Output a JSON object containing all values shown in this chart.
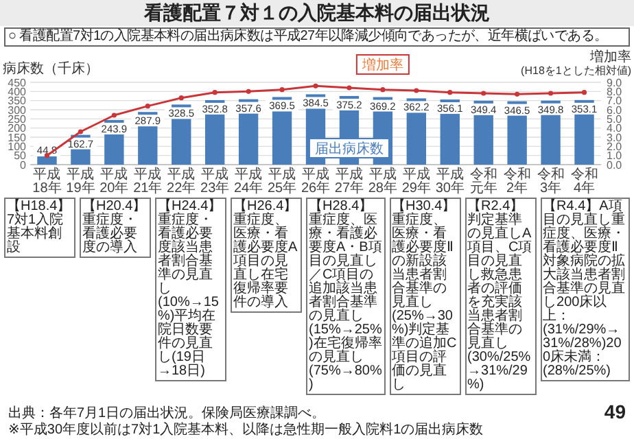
{
  "chart_data": {
    "type": "bar",
    "title": "看護配置７対１の入院基本料の届出状況",
    "subtitle": "○ 看護配置7対1の入院基本料の届出病床数は平成27年以降減少傾向であったが、近年横ばいである。",
    "ylabel": "病床数（千床）",
    "y2label": "増加率\n(H18を1とした相対値)",
    "categories": [
      "平成18年",
      "平成19年",
      "平成20年",
      "平成21年",
      "平成22年",
      "平成23年",
      "平成24年",
      "平成25年",
      "平成26年",
      "平成27年",
      "平成28年",
      "平成29年",
      "平成30年",
      "令和元年",
      "令和2年",
      "令和3年",
      "令和4年"
    ],
    "series": [
      {
        "name": "届出病床数",
        "color": "#4a7ebb",
        "values": [
          44.8,
          162.7,
          243.9,
          287.9,
          328.5,
          352.8,
          357.6,
          369.5,
          384.5,
          375.2,
          369.2,
          362.2,
          356.1,
          349.4,
          346.5,
          349.8,
          353.1
        ],
        "value_labels": [
          "44.8",
          "162.7",
          "243.9",
          "287.9",
          "328.5",
          "352.8",
          "357.6",
          "369.5",
          "384.5",
          "375.2",
          "369.2",
          "362.2",
          "356.1",
          "349.4",
          "346.5",
          "349.8",
          "353.1"
        ]
      },
      {
        "name": "増加率",
        "type": "line",
        "axis": "y2",
        "color": "#c7373a",
        "values": [
          1.0,
          3.6,
          5.4,
          6.4,
          7.3,
          7.9,
          8.0,
          8.2,
          8.6,
          8.4,
          8.2,
          8.1,
          7.9,
          7.8,
          7.7,
          7.8,
          7.9
        ]
      }
    ],
    "ylim": [
      0,
      450
    ],
    "yticks": [
      0,
      50,
      100,
      150,
      200,
      250,
      300,
      350,
      400,
      450
    ],
    "y2lim": [
      0,
      9
    ],
    "y2ticks": [
      {
        "value": 0,
        "label": "0.0"
      },
      {
        "value": 1,
        "label": "1.0"
      },
      {
        "value": 2,
        "label": "2.0"
      },
      {
        "value": 3,
        "label": "3.0"
      },
      {
        "value": 4,
        "label": "4.0"
      },
      {
        "value": 5,
        "label": "5.0"
      },
      {
        "value": 6,
        "label": "6.0"
      },
      {
        "value": 7,
        "label": "7.0"
      },
      {
        "value": 8,
        "label": "8.0"
      },
      {
        "value": 9,
        "label": "9.0"
      }
    ],
    "grid": "y",
    "marker": "circle",
    "annotations": [
      "【H18.4】7対1入院基本料創設",
      "【H20.4】重症度・看護必要度の導入",
      "【H24.4】重症度・看護必要度該当患者割合基準の見直し(10%→15%)平均在院日数要件の見直し(19日→18日)",
      "【H26.4】重症度、医療・看護必要度A項目の見直し在宅復帰率要件の導入",
      "【H28.4】重症度、医療・看護必要度A・B項目の見直し／C項目の追加該当患者割合基準の見直し(15%→25%)在宅復帰率の見直し(75%→80%)",
      "【H30.4】重症度、医療・看護必要度Ⅱの新設該当患者割合基準の見直し(25%→30%)判定基準の追加C項目の評価の見直し",
      "【R2.4】判定基準の見直しA項目、C項目の見直し救急患者の評価を充実該当患者割合基準の見直し(30%/25%→31%/29%)",
      "【R4.4】A項目の見直し重症度、医療・看護必要度Ⅱ対象病院の拡大該当患者割合基準の見直し200床以上：(31%/29%→31%/28%)200床未満：(28%/25%)",
      "出典：各年7月1日の届出状況。保険局医療課調べ。",
      "※平成30年度以前は7対1入院基本料、以降は急性期一般入院料1の届出病床数",
      "49"
    ]
  }
}
